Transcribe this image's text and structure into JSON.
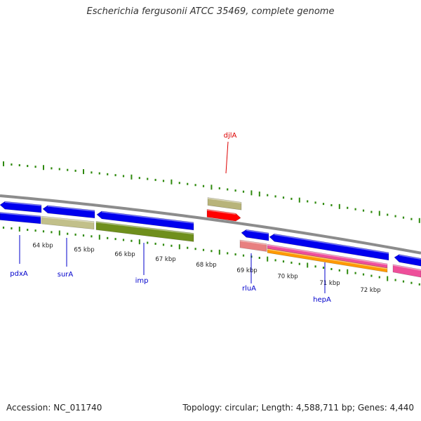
{
  "title": "Escherichia fergusonii ATCC 35469, complete genome",
  "footer": {
    "accession": "Accession: NC_011740",
    "summary": "Topology: circular; Length: 4,588,711 bp; Genes: 4,440"
  },
  "colors": {
    "backbone": "#8c8c8c",
    "tick": "#2f8a0e",
    "forward_gene": "#b8b47a",
    "forward_cds": "#ff0000",
    "reverse_gene": "#0000ee",
    "olive": "#6f8f1c",
    "khaki": "#c2c08a",
    "pink": "#ee4e9a",
    "orange": "#ff9900",
    "salmon": "#e88080",
    "label_red": "#dd0000",
    "label_blue": "#0000cc"
  },
  "kbp_labels": [
    "64 kbp",
    "65 kbp",
    "66 kbp",
    "67 kbp",
    "68 kbp",
    "69 kbp",
    "70 kbp",
    "71 kbp",
    "72 kbp"
  ],
  "gene_labels": [
    {
      "id": "pdxA",
      "text": "pdxA",
      "color": "label_blue"
    },
    {
      "id": "surA",
      "text": "surA",
      "color": "label_blue"
    },
    {
      "id": "imp",
      "text": "imp",
      "color": "label_blue"
    },
    {
      "id": "djlA",
      "text": "djlA",
      "color": "label_red"
    },
    {
      "id": "rluA",
      "text": "rluA",
      "color": "label_blue"
    },
    {
      "id": "hepA",
      "text": "hepA",
      "color": "label_blue"
    }
  ]
}
